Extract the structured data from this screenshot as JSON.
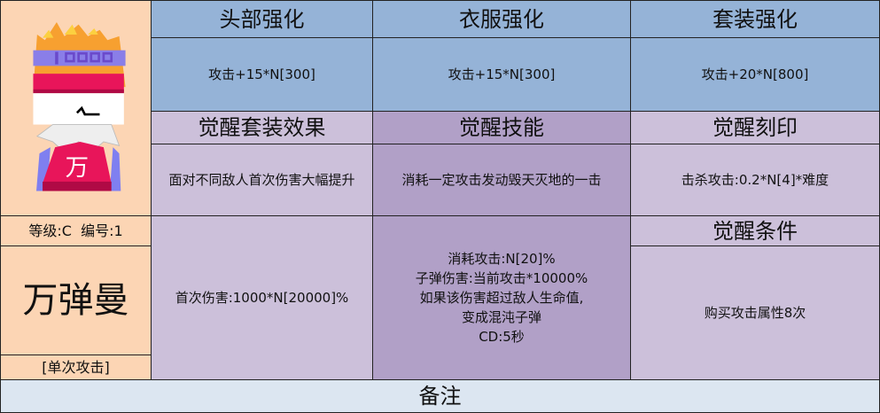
{
  "character": {
    "name": "万弹曼",
    "level_label": "等级:C",
    "id_label": "编号:1",
    "attack_type": "[单次攻击]",
    "badge_glyph": "万"
  },
  "upgrades": [
    {
      "title": "头部强化",
      "value": "攻击+15*N[300]"
    },
    {
      "title": "衣服强化",
      "value": "攻击+15*N[300]"
    },
    {
      "title": "套装强化",
      "value": "攻击+20*N[800]"
    }
  ],
  "awaken": {
    "set_effect": {
      "title": "觉醒套装效果",
      "value": "面对不同敌人首次伤害大幅提升",
      "detail": "首次伤害:1000*N[20000]%"
    },
    "skill": {
      "title": "觉醒技能",
      "value": "消耗一定攻击发动毁天灭地的一击",
      "detail": [
        "消耗攻击:N[20]%",
        "子弹伤害:当前攻击*10000%",
        "如果该伤害超过敌人生命值,",
        "变成混沌子弹",
        "CD:5秒"
      ]
    },
    "imprint": {
      "title": "觉醒刻印",
      "value": "击杀攻击:0.2*N[4]*难度"
    },
    "condition": {
      "title": "觉醒条件",
      "value": "购买攻击属性8次"
    }
  },
  "notes": {
    "title": "备注"
  },
  "colors": {
    "blue": "#95b3d7",
    "light_purple": "#ccc0da",
    "dark_purple": "#b1a0c7",
    "peach": "#fcd5b4",
    "note": "#dce6f1"
  }
}
